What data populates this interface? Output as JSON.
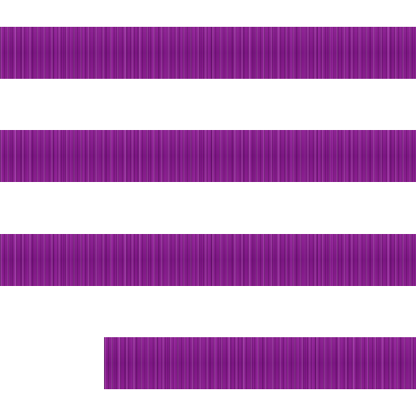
{
  "icon": {
    "name": "align-right-icon",
    "color": "#8a1f8f",
    "lines": 4
  }
}
